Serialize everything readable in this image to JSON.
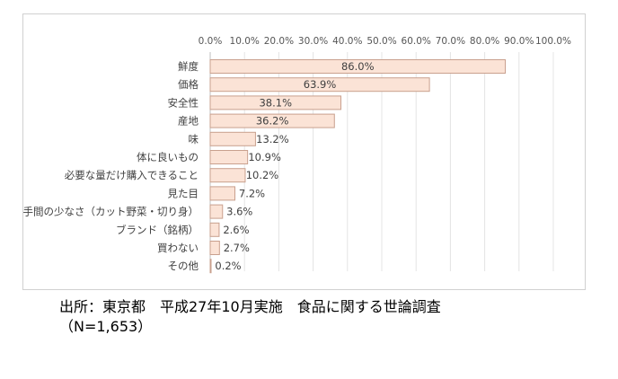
{
  "chart_data": {
    "type": "bar",
    "orientation": "horizontal",
    "title": "",
    "xlabel": "",
    "ylabel": "",
    "xlim": [
      0,
      100
    ],
    "xticks": [
      "0.0%",
      "10.0%",
      "20.0%",
      "30.0%",
      "40.0%",
      "50.0%",
      "60.0%",
      "70.0%",
      "80.0%",
      "90.0%",
      "100.0%"
    ],
    "xtick_values": [
      0,
      10,
      20,
      30,
      40,
      50,
      60,
      70,
      80,
      90,
      100
    ],
    "x_axis_position": "top",
    "grid": true,
    "legend": "none",
    "bar_color": "#fbe3d6",
    "bar_border_color": "#c9a08e",
    "categories": [
      "鮮度",
      "価格",
      "安全性",
      "産地",
      "味",
      "体に良いもの",
      "必要な量だけ購入できること",
      "見た目",
      "手間の少なさ（カット野菜・切り身）",
      "ブランド（銘柄）",
      "買わない",
      "その他"
    ],
    "values": [
      86.0,
      63.9,
      38.1,
      36.2,
      13.2,
      10.9,
      10.2,
      7.2,
      3.6,
      2.6,
      2.7,
      0.2
    ],
    "value_labels": [
      "86.0%",
      "63.9%",
      "38.1%",
      "36.2%",
      "13.2%",
      "10.9%",
      "10.2%",
      "7.2%",
      "3.6%",
      "2.6%",
      "2.7%",
      "0.2%"
    ]
  },
  "source": {
    "line1": "出所：東京都　平成27年10月実施　食品に関する世論調査",
    "line2": "（N=1,653）"
  }
}
